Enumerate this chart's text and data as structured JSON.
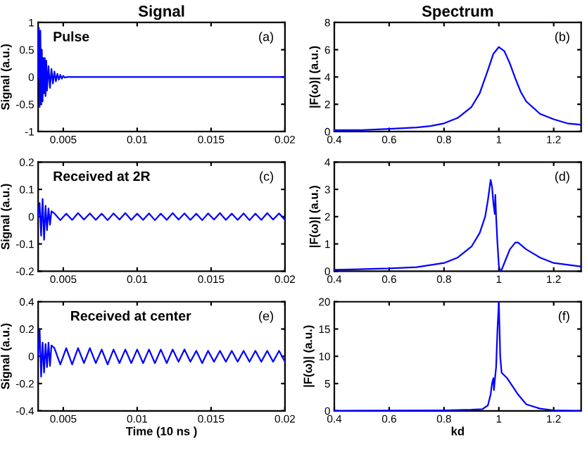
{
  "chart_data": [
    {
      "type": "line",
      "title": "Signal",
      "ylabel": "Signal (a.u.)",
      "annotations": [
        "Pulse",
        "(a)"
      ],
      "xlim": [
        0.0033,
        0.02
      ],
      "xticks": [
        0.005,
        0.01,
        0.015,
        0.02
      ],
      "ylim": [
        -1,
        1
      ],
      "yticks": [
        -1,
        -0.5,
        0,
        0.5,
        1
      ],
      "series": [
        {
          "color": "#0000ff",
          "x": [
            0.0033,
            0.00335,
            0.0034,
            0.00345,
            0.0035,
            0.00355,
            0.0036,
            0.00365,
            0.0037,
            0.00375,
            0.0038,
            0.00385,
            0.0039,
            0.004,
            0.0041,
            0.0042,
            0.0043,
            0.0044,
            0.0045,
            0.0046,
            0.0047,
            0.0048,
            0.0049,
            0.005,
            0.0051,
            0.0053,
            0.02
          ],
          "values": [
            0,
            0.9,
            -0.55,
            0.85,
            -0.5,
            0.5,
            -0.45,
            0.35,
            -0.3,
            0.35,
            -0.35,
            0.3,
            -0.25,
            0.2,
            -0.2,
            0.15,
            -0.12,
            0.1,
            -0.08,
            0.06,
            -0.05,
            0.04,
            -0.03,
            0.02,
            -0.01,
            0,
            0
          ]
        }
      ]
    },
    {
      "type": "line",
      "title": "Spectrum",
      "ylabel": "|F(ω)| (a.u.)",
      "annotations": [
        "(b)"
      ],
      "xlim": [
        0.4,
        1.3
      ],
      "xticks": [
        0.4,
        0.6,
        0.8,
        1,
        1.2
      ],
      "ylim": [
        0,
        8
      ],
      "yticks": [
        0,
        2,
        4,
        6,
        8
      ],
      "series": [
        {
          "color": "#0000ff",
          "x": [
            0.4,
            0.5,
            0.6,
            0.7,
            0.75,
            0.8,
            0.85,
            0.9,
            0.93,
            0.96,
            0.98,
            1.0,
            1.02,
            1.04,
            1.06,
            1.08,
            1.1,
            1.15,
            1.2,
            1.25,
            1.3
          ],
          "values": [
            0.1,
            0.1,
            0.2,
            0.3,
            0.4,
            0.6,
            1.0,
            1.8,
            2.8,
            4.5,
            5.7,
            6.2,
            5.9,
            5.0,
            3.9,
            2.9,
            2.2,
            1.3,
            0.9,
            0.6,
            0.5
          ]
        }
      ]
    },
    {
      "type": "line",
      "ylabel": "Signal (a.u.)",
      "annotations": [
        "Received at 2R",
        "(c)"
      ],
      "xlim": [
        0.0033,
        0.02
      ],
      "xticks": [
        0.005,
        0.01,
        0.015,
        0.02
      ],
      "ylim": [
        -0.2,
        0.2
      ],
      "yticks": [
        -0.2,
        -0.1,
        0,
        0.1,
        0.2
      ],
      "series": [
        {
          "color": "#0000ff",
          "x": [
            0.0033,
            0.0034,
            0.0035,
            0.0036,
            0.0037,
            0.0038,
            0.0039,
            0.004,
            0.0041,
            0.0042,
            0.0044,
            0.0048,
            0.0052,
            0.0056,
            0.006,
            0.0064,
            0.0068,
            0.0072,
            0.0076,
            0.008,
            0.0084,
            0.0088,
            0.0092,
            0.0096,
            0.01,
            0.0104,
            0.0108,
            0.0112,
            0.0116,
            0.012,
            0.0124,
            0.0128,
            0.0132,
            0.0136,
            0.014,
            0.0144,
            0.0148,
            0.0152,
            0.0156,
            0.016,
            0.0164,
            0.0168,
            0.0172,
            0.0176,
            0.018,
            0.0184,
            0.0188,
            0.0192,
            0.0196,
            0.02
          ],
          "values": [
            0,
            0.05,
            -0.07,
            0.065,
            -0.085,
            0.04,
            -0.05,
            0.03,
            -0.03,
            0.02,
            0.012,
            -0.013,
            0.011,
            -0.012,
            0.013,
            -0.011,
            0.012,
            -0.012,
            0.011,
            -0.013,
            0.012,
            -0.011,
            0.013,
            -0.012,
            0.011,
            -0.012,
            0.012,
            -0.013,
            0.011,
            -0.012,
            0.013,
            -0.011,
            0.012,
            -0.012,
            0.011,
            -0.013,
            0.012,
            -0.011,
            0.013,
            -0.012,
            0.011,
            -0.012,
            0.012,
            -0.013,
            0.011,
            -0.012,
            0.013,
            -0.011,
            0.012,
            -0.012
          ]
        }
      ]
    },
    {
      "type": "line",
      "ylabel": "|F(ω)| (a.u.)",
      "annotations": [
        "(d)"
      ],
      "xlim": [
        0.4,
        1.3
      ],
      "xticks": [
        0.4,
        0.6,
        0.8,
        1,
        1.2
      ],
      "ylim": [
        0,
        4
      ],
      "yticks": [
        0,
        1,
        2,
        3,
        4
      ],
      "series": [
        {
          "color": "#0000ff",
          "x": [
            0.4,
            0.6,
            0.7,
            0.8,
            0.85,
            0.9,
            0.93,
            0.95,
            0.96,
            0.97,
            0.975,
            0.98,
            0.985,
            0.987,
            0.99,
            0.995,
            1.0,
            1.005,
            1.01,
            1.02,
            1.04,
            1.06,
            1.07,
            1.1,
            1.15,
            1.2,
            1.3
          ],
          "values": [
            0.05,
            0.1,
            0.15,
            0.3,
            0.5,
            0.9,
            1.4,
            2.0,
            2.6,
            3.35,
            3.1,
            2.5,
            2.1,
            2.8,
            2.0,
            1.0,
            0.2,
            0.0,
            0.05,
            0.3,
            0.8,
            1.05,
            1.05,
            0.8,
            0.5,
            0.3,
            0.17
          ]
        }
      ]
    },
    {
      "type": "line",
      "ylabel": "Signal (a.u.)",
      "xlabel": "Time (10 ns )",
      "annotations": [
        "Received at center",
        "(e)"
      ],
      "xlim": [
        0.0033,
        0.02
      ],
      "xticks": [
        0.005,
        0.01,
        0.015,
        0.02
      ],
      "ylim": [
        -0.4,
        0.4
      ],
      "yticks": [
        -0.4,
        -0.2,
        0,
        0.2,
        0.4
      ],
      "series": [
        {
          "color": "#0000ff",
          "x": [
            0.0033,
            0.0034,
            0.0035,
            0.0036,
            0.0037,
            0.0038,
            0.0039,
            0.004,
            0.0041,
            0.0042,
            0.0044,
            0.0048,
            0.0052,
            0.0056,
            0.006,
            0.0064,
            0.0068,
            0.0072,
            0.0076,
            0.008,
            0.0084,
            0.0088,
            0.0092,
            0.0096,
            0.01,
            0.0104,
            0.0108,
            0.0112,
            0.0116,
            0.012,
            0.0124,
            0.0128,
            0.0132,
            0.0136,
            0.014,
            0.0144,
            0.0148,
            0.0152,
            0.0156,
            0.016,
            0.0164,
            0.0168,
            0.0172,
            0.0176,
            0.018,
            0.0184,
            0.0188,
            0.0192,
            0.0196,
            0.02
          ],
          "values": [
            0,
            0.2,
            -0.15,
            0.1,
            -0.12,
            0.09,
            -0.08,
            0.1,
            -0.07,
            0.08,
            0.06,
            -0.06,
            0.06,
            -0.06,
            0.06,
            -0.05,
            0.06,
            -0.05,
            0.05,
            -0.06,
            0.05,
            -0.05,
            0.05,
            -0.05,
            0.05,
            -0.05,
            0.05,
            -0.05,
            0.05,
            -0.05,
            0.05,
            -0.04,
            0.05,
            -0.04,
            0.04,
            -0.05,
            0.04,
            -0.04,
            0.04,
            -0.04,
            0.04,
            -0.04,
            0.04,
            -0.04,
            0.04,
            -0.04,
            0.04,
            -0.04,
            0.04,
            -0.04
          ]
        }
      ]
    },
    {
      "type": "line",
      "ylabel": "|F(ω)| (a.u.)",
      "xlabel": "kd",
      "annotations": [
        "(f)"
      ],
      "xlim": [
        0.4,
        1.3
      ],
      "xticks": [
        0.4,
        0.6,
        0.8,
        1,
        1.2
      ],
      "ylim": [
        0,
        20
      ],
      "yticks": [
        0,
        5,
        10,
        15,
        20
      ],
      "series": [
        {
          "color": "#0000ff",
          "x": [
            0.4,
            0.8,
            0.9,
            0.94,
            0.96,
            0.97,
            0.975,
            0.98,
            0.982,
            0.985,
            0.99,
            0.995,
            1.0,
            1.005,
            1.01,
            1.03,
            1.05,
            1.07,
            1.1,
            1.15,
            1.2,
            1.3
          ],
          "values": [
            0,
            0.1,
            0.2,
            0.3,
            1,
            3,
            5,
            6,
            3.8,
            5.5,
            8,
            15,
            20,
            10,
            7,
            6,
            4.5,
            3,
            1.2,
            0.4,
            0.1,
            0
          ]
        }
      ]
    }
  ]
}
